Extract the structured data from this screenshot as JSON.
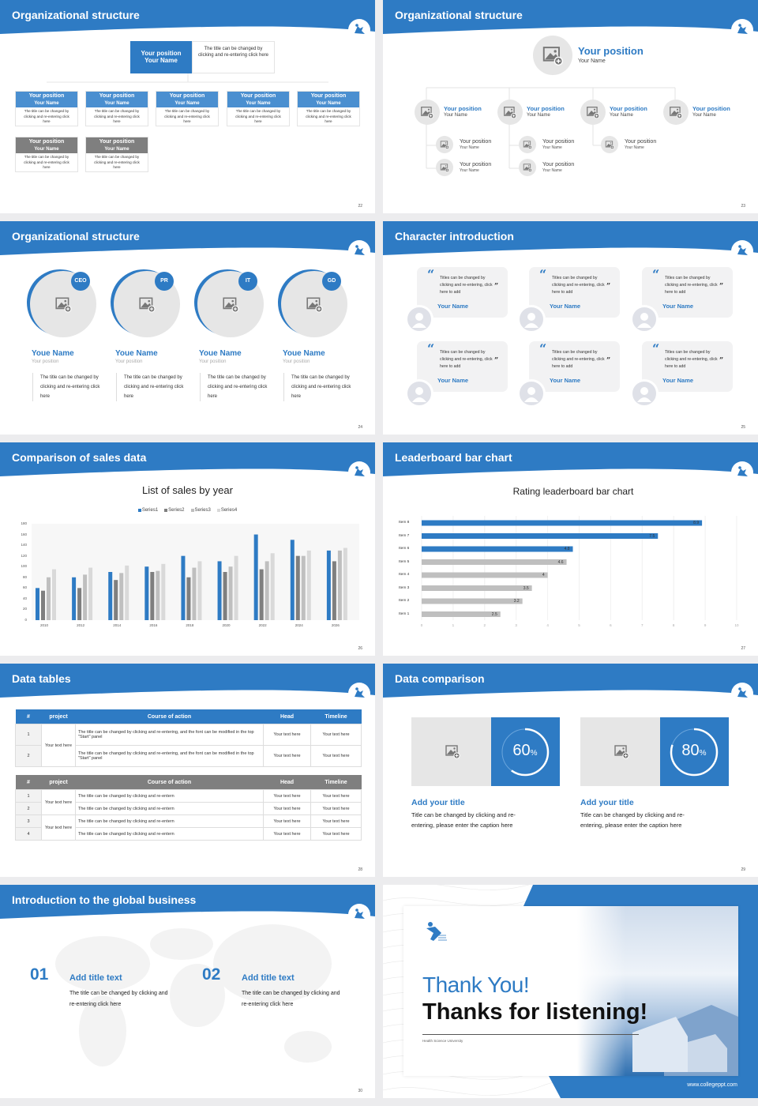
{
  "colors": {
    "brand": "#2e7bc4",
    "gray_header": "#7f7f7f",
    "placeholder": "#e6e6e6",
    "background": "#ececee"
  },
  "slides": [
    {
      "title": "Organizational structure",
      "page": "22",
      "top": {
        "position": "Your position",
        "name": "Your Name",
        "desc": "The title can be changed by clicking and re-entering click here"
      },
      "members": [
        {
          "position": "Your position",
          "name": "Your Name",
          "desc": "The title can be changed by clicking and re-entering click here",
          "style": "blue"
        },
        {
          "position": "Your position",
          "name": "Your Name",
          "desc": "The title can be changed by clicking and re-entering click here",
          "style": "blue"
        },
        {
          "position": "Your position",
          "name": "Your Name",
          "desc": "The title can be changed by clicking and re-entering click here",
          "style": "blue"
        },
        {
          "position": "Your position",
          "name": "Your Name",
          "desc": "The title can be changed by clicking and re-entering click here",
          "style": "blue"
        },
        {
          "position": "Your position",
          "name": "Your Name",
          "desc": "The title can be changed by clicking and re-entering click here",
          "style": "blue"
        },
        {
          "position": "Your position",
          "name": "Your Name",
          "desc": "The title can be changed by clicking and re-entering click here",
          "style": "gray"
        },
        {
          "position": "Your position",
          "name": "Your Name",
          "desc": "The title can be changed by clicking and re-entering click here",
          "style": "gray"
        }
      ]
    },
    {
      "title": "Organizational structure",
      "page": "23",
      "top": {
        "position": "Your position",
        "name": "Your Name"
      },
      "level2": [
        {
          "position": "Your position",
          "name": "Your Name"
        },
        {
          "position": "Your position",
          "name": "Your Name"
        },
        {
          "position": "Your position",
          "name": "Your Name"
        },
        {
          "position": "Your position",
          "name": "Your Name"
        }
      ],
      "level3": [
        {
          "position": "Your position",
          "name": "Your Name"
        },
        {
          "position": "Your position",
          "name": "Your Name"
        },
        {
          "position": "Your position",
          "name": "Your Name"
        },
        {
          "position": "Your position",
          "name": "Your Name"
        },
        {
          "position": "Your position",
          "name": "Your Name"
        }
      ]
    },
    {
      "title": "Organizational structure",
      "page": "24",
      "people": [
        {
          "badge": "CEO",
          "name": "Youe Name",
          "position": "Your position",
          "desc": "The title can be changed by clicking and re-entering click here"
        },
        {
          "badge": "PR",
          "name": "Youe Name",
          "position": "Your position",
          "desc": "The title can be changed by clicking and re-entering click here"
        },
        {
          "badge": "IT",
          "name": "Youe Name",
          "position": "Your position",
          "desc": "The title can be changed by clicking and re-entering click here"
        },
        {
          "badge": "GD",
          "name": "Youe Name",
          "position": "Your position",
          "desc": "The title can be changed by clicking and re-entering click here"
        }
      ]
    },
    {
      "title": "Character introduction",
      "page": "25",
      "cards": [
        {
          "quote": "Titles can be changed by clicking and re-entering, click here to add",
          "name": "Your Name"
        },
        {
          "quote": "Titles can be changed by clicking and re-entering, click here to add",
          "name": "Your Name"
        },
        {
          "quote": "Titles can be changed by clicking and re-entering, click here to add",
          "name": "Your Name"
        },
        {
          "quote": "Titles can be changed by clicking and re-entering, click here to add",
          "name": "Your Name"
        },
        {
          "quote": "Titles can be changed by clicking and re-entering, click here to add",
          "name": "Your Name"
        },
        {
          "quote": "Titles can be changed by clicking and re-entering, click here to add",
          "name": "Your Name"
        }
      ]
    },
    {
      "title": "Comparison of sales data",
      "page": "26"
    },
    {
      "title": "Leaderboard bar chart",
      "page": "27"
    },
    {
      "title": "Data tables",
      "page": "28",
      "table1": {
        "headers": [
          "#",
          "project",
          "Course of action",
          "Head",
          "Timeline"
        ],
        "groups": [
          {
            "project": "Your text here",
            "rows": [
              {
                "n": "1",
                "action": "The title can be changed by clicking and re-entering, and the font can be modified in the top \"Start\" panel",
                "head": "Your text here",
                "timeline": "Your text here"
              },
              {
                "n": "2",
                "action": "The title can be changed by clicking and re-entering, and the font can be modified in the top \"Start\" panel",
                "head": "Your text here",
                "timeline": "Your text here"
              }
            ]
          }
        ]
      },
      "table2": {
        "headers": [
          "#",
          "project",
          "Course of action",
          "Head",
          "Timeline"
        ],
        "groups": [
          {
            "project": "Your text here",
            "rows": [
              {
                "n": "1",
                "action": "The title can be changed by clicking and re-entern",
                "head": "Your text here",
                "timeline": "Your text here"
              },
              {
                "n": "2",
                "action": "The title can be changed by clicking and re-entern",
                "head": "Your text here",
                "timeline": "Your text here"
              }
            ]
          },
          {
            "project": "Your text here",
            "rows": [
              {
                "n": "3",
                "action": "The title can be changed by clicking and re-entern",
                "head": "Your text here",
                "timeline": "Your text here"
              },
              {
                "n": "4",
                "action": "The title can be changed by clicking and re-entern",
                "head": "Your text here",
                "timeline": "Your text here"
              }
            ]
          }
        ]
      }
    },
    {
      "title": "Data comparison",
      "page": "29",
      "items": [
        {
          "percent": 60,
          "percent_label": "60",
          "unit": "%",
          "title": "Add your title",
          "caption": "Title can be changed by clicking and re-entering, please enter the caption here"
        },
        {
          "percent": 80,
          "percent_label": "80",
          "unit": "%",
          "title": "Add your title",
          "caption": "Title can be changed by clicking and re-entering, please enter the caption here"
        }
      ]
    },
    {
      "title": "Introduction to the global business",
      "page": "30",
      "items": [
        {
          "num": "01",
          "title": "Add title text",
          "desc": "The title can be changed by clicking and re-entering click here"
        },
        {
          "num": "02",
          "title": "Add title text",
          "desc": "The title can be changed by clicking and re-entering click here"
        }
      ]
    },
    {
      "thanks": "Thank You!",
      "headline": "Thanks for listening!",
      "university": "Health Science University",
      "website": "www.collegeppt.com"
    }
  ],
  "chart_data": [
    {
      "type": "bar",
      "title": "List of sales by year",
      "xlabel": "",
      "ylabel": "",
      "categories": [
        "2010",
        "2012",
        "2014",
        "2016",
        "2018",
        "2020",
        "2022",
        "2024",
        "2026"
      ],
      "series": [
        {
          "name": "Series1",
          "color": "#2e7bc4",
          "values": [
            60,
            80,
            90,
            100,
            120,
            110,
            160,
            150,
            130
          ]
        },
        {
          "name": "Series2",
          "color": "#7f7f7f",
          "values": [
            55,
            60,
            75,
            90,
            80,
            90,
            95,
            120,
            110
          ]
        },
        {
          "name": "Series3",
          "color": "#bfbfbf",
          "values": [
            80,
            85,
            88,
            92,
            98,
            100,
            110,
            120,
            130
          ]
        },
        {
          "name": "Series4",
          "color": "#d9d9d9",
          "values": [
            95,
            98,
            102,
            105,
            110,
            120,
            125,
            130,
            135
          ]
        }
      ],
      "ylim": [
        0,
        180
      ],
      "yticks": [
        0,
        20,
        40,
        60,
        80,
        100,
        120,
        140,
        160,
        180
      ],
      "legend": "top",
      "grid": false
    },
    {
      "type": "bar",
      "orientation": "horizontal",
      "title": "Rating leaderboard bar chart",
      "categories": [
        "Item 8",
        "Item 7",
        "Item 6",
        "Item 5",
        "Item 4",
        "Item 3",
        "Item 2",
        "Item 1"
      ],
      "values": [
        8.9,
        7.5,
        4.8,
        4.6,
        4,
        3.5,
        3.2,
        2.5
      ],
      "colors": [
        "#2e7bc4",
        "#2e7bc4",
        "#2e7bc4",
        "#bfbfbf",
        "#bfbfbf",
        "#bfbfbf",
        "#bfbfbf",
        "#bfbfbf"
      ],
      "xlim": [
        0,
        10
      ],
      "xticks": [
        0,
        1,
        2,
        3,
        4,
        5,
        6,
        7,
        8,
        9,
        10
      ],
      "grid": true
    }
  ]
}
